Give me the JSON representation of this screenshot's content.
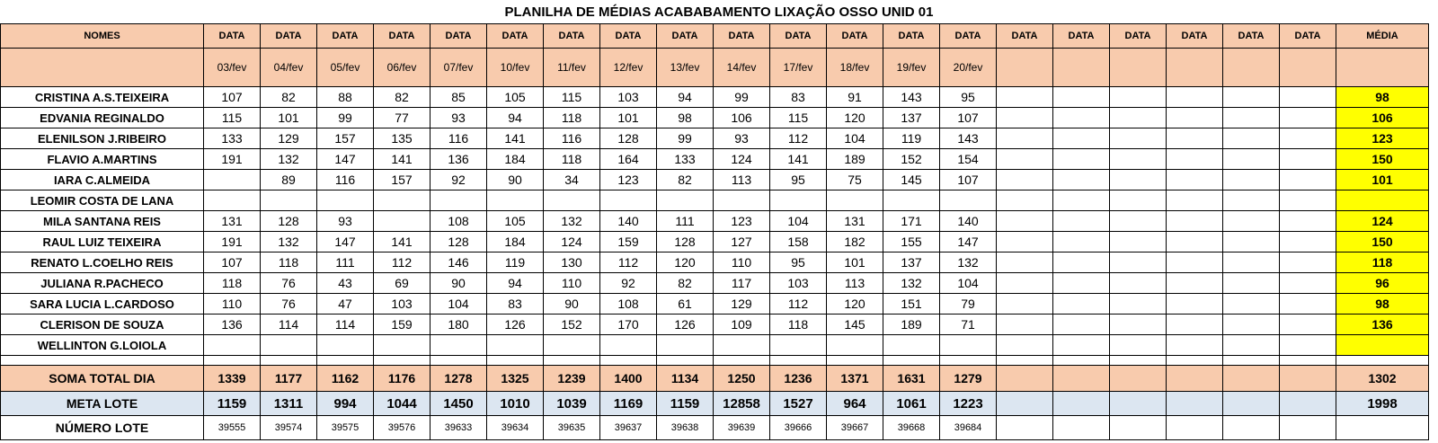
{
  "title": "PLANILHA DE MÉDIAS ACABABAMENTO LIXAÇÃO OSSO UNID 01",
  "header": {
    "names_label": "NOMES",
    "col_label": "DATA",
    "media_label": "MÉDIA",
    "dates": [
      "03/fev",
      "04/fev",
      "05/fev",
      "06/fev",
      "07/fev",
      "10/fev",
      "11/fev",
      "12/fev",
      "13/fev",
      "14/fev",
      "17/fev",
      "18/fev",
      "19/fev",
      "20/fev",
      "",
      "",
      "",
      "",
      "",
      ""
    ]
  },
  "rows": [
    {
      "name": "CRISTINA A.S.TEIXEIRA",
      "values": [
        "107",
        "82",
        "88",
        "82",
        "85",
        "105",
        "115",
        "103",
        "94",
        "99",
        "83",
        "91",
        "143",
        "95",
        "",
        "",
        "",
        "",
        "",
        ""
      ],
      "media": "98"
    },
    {
      "name": "EDVANIA REGINALDO",
      "values": [
        "115",
        "101",
        "99",
        "77",
        "93",
        "94",
        "118",
        "101",
        "98",
        "106",
        "115",
        "120",
        "137",
        "107",
        "",
        "",
        "",
        "",
        "",
        ""
      ],
      "media": "106"
    },
    {
      "name": "ELENILSON J.RIBEIRO",
      "values": [
        "133",
        "129",
        "157",
        "135",
        "116",
        "141",
        "116",
        "128",
        "99",
        "93",
        "112",
        "104",
        "119",
        "143",
        "",
        "",
        "",
        "",
        "",
        ""
      ],
      "media": "123"
    },
    {
      "name": "FLAVIO A.MARTINS",
      "values": [
        "191",
        "132",
        "147",
        "141",
        "136",
        "184",
        "118",
        "164",
        "133",
        "124",
        "141",
        "189",
        "152",
        "154",
        "",
        "",
        "",
        "",
        "",
        ""
      ],
      "media": "150"
    },
    {
      "name": "IARA C.ALMEIDA",
      "values": [
        "",
        "89",
        "116",
        "157",
        "92",
        "90",
        "34",
        "123",
        "82",
        "113",
        "95",
        "75",
        "145",
        "107",
        "",
        "",
        "",
        "",
        "",
        ""
      ],
      "media": "101"
    },
    {
      "name": "LEOMIR COSTA DE LANA",
      "values": [
        "",
        "",
        "",
        "",
        "",
        "",
        "",
        "",
        "",
        "",
        "",
        "",
        "",
        "",
        "",
        "",
        "",
        "",
        "",
        ""
      ],
      "media": ""
    },
    {
      "name": "MILA SANTANA REIS",
      "values": [
        "131",
        "128",
        "93",
        "",
        "108",
        "105",
        "132",
        "140",
        "111",
        "123",
        "104",
        "131",
        "171",
        "140",
        "",
        "",
        "",
        "",
        "",
        ""
      ],
      "media": "124"
    },
    {
      "name": "RAUL LUIZ TEIXEIRA",
      "values": [
        "191",
        "132",
        "147",
        "141",
        "128",
        "184",
        "124",
        "159",
        "128",
        "127",
        "158",
        "182",
        "155",
        "147",
        "",
        "",
        "",
        "",
        "",
        ""
      ],
      "media": "150"
    },
    {
      "name": "RENATO L.COELHO REIS",
      "values": [
        "107",
        "118",
        "111",
        "112",
        "146",
        "119",
        "130",
        "112",
        "120",
        "110",
        "95",
        "101",
        "137",
        "132",
        "",
        "",
        "",
        "",
        "",
        ""
      ],
      "media": "118"
    },
    {
      "name": "JULIANA R.PACHECO",
      "values": [
        "118",
        "76",
        "43",
        "69",
        "90",
        "94",
        "110",
        "92",
        "82",
        "117",
        "103",
        "113",
        "132",
        "104",
        "",
        "",
        "",
        "",
        "",
        ""
      ],
      "media": "96"
    },
    {
      "name": "SARA LUCIA L.CARDOSO",
      "values": [
        "110",
        "76",
        "47",
        "103",
        "104",
        "83",
        "90",
        "108",
        "61",
        "129",
        "112",
        "120",
        "151",
        "79",
        "",
        "",
        "",
        "",
        "",
        ""
      ],
      "media": "98"
    },
    {
      "name": "CLERISON DE SOUZA",
      "values": [
        "136",
        "114",
        "114",
        "159",
        "180",
        "126",
        "152",
        "170",
        "126",
        "109",
        "118",
        "145",
        "189",
        "71",
        "",
        "",
        "",
        "",
        "",
        ""
      ],
      "media": "136"
    },
    {
      "name": "WELLINTON G.LOIOLA",
      "values": [
        "",
        "",
        "",
        "",
        "",
        "",
        "",
        "",
        "",
        "",
        "",
        "",
        "",
        "",
        "",
        "",
        "",
        "",
        "",
        ""
      ],
      "media": ""
    }
  ],
  "soma": {
    "label": "SOMA TOTAL DIA",
    "values": [
      "1339",
      "1177",
      "1162",
      "1176",
      "1278",
      "1325",
      "1239",
      "1400",
      "1134",
      "1250",
      "1236",
      "1371",
      "1631",
      "1279",
      "",
      "",
      "",
      "",
      "",
      ""
    ],
    "media": "1302"
  },
  "meta": {
    "label": "META LOTE",
    "values": [
      "1159",
      "1311",
      "994",
      "1044",
      "1450",
      "1010",
      "1039",
      "1169",
      "1159",
      "12858",
      "1527",
      "964",
      "1061",
      "1223",
      "",
      "",
      "",
      "",
      "",
      ""
    ],
    "media": "1998"
  },
  "numero": {
    "label": "NÚMERO LOTE",
    "values": [
      "39555",
      "39574",
      "39575",
      "39576",
      "39633",
      "39634",
      "39635",
      "39637",
      "39638",
      "39639",
      "39666",
      "39667",
      "39668",
      "39684",
      "",
      "",
      "",
      "",
      "",
      ""
    ],
    "media": ""
  }
}
